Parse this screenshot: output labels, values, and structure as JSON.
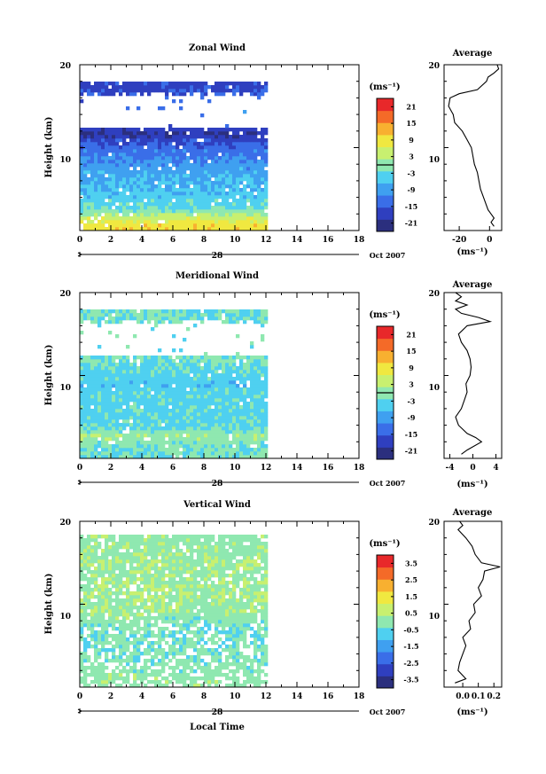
{
  "colormap": [
    "#2b2f7e",
    "#2f3fbf",
    "#3a6ee8",
    "#3fa0f0",
    "#4fd0f0",
    "#8fe8b0",
    "#c8f070",
    "#f0e840",
    "#f8b030",
    "#f46a28",
    "#e8282a"
  ],
  "chart_data": [
    {
      "type": "heatmap",
      "title": "Zonal Wind",
      "ylabel": "Height (km)",
      "x_ticks": [
        "0",
        "2",
        "4",
        "6",
        "8",
        "10",
        "12",
        "14",
        "16",
        "18"
      ],
      "xlim": [
        0,
        18
      ],
      "y_ticks": [
        "10",
        "20"
      ],
      "ylim": [
        0,
        20
      ],
      "date_day": "28",
      "date_label": "Oct 2007",
      "data_extent_hours": [
        0,
        12
      ],
      "colorbar": {
        "unit": "(ms⁻¹)",
        "ticks": [
          "21",
          "15",
          "9",
          "3",
          "-3",
          "-9",
          "-15",
          "-21"
        ],
        "range": [
          -24,
          24
        ],
        "zero_line": true
      },
      "field_profile_km": [
        {
          "h": 1,
          "v": 9
        },
        {
          "h": 2,
          "v": 3
        },
        {
          "h": 3,
          "v": -3
        },
        {
          "h": 4,
          "v": -4
        },
        {
          "h": 5,
          "v": -6
        },
        {
          "h": 6,
          "v": -7
        },
        {
          "h": 7,
          "v": -8
        },
        {
          "h": 8,
          "v": -9
        },
        {
          "h": 9,
          "v": -11
        },
        {
          "h": 10,
          "v": -13
        },
        {
          "h": 11,
          "v": -16
        },
        {
          "h": 12,
          "v": -20
        },
        {
          "h": 13,
          "v": -14
        },
        {
          "h": 14,
          "v": -10
        },
        {
          "h": 17.5,
          "v": -17
        }
      ],
      "average": {
        "title": "Average",
        "xlabel": "(ms⁻¹)",
        "x_ticks": [
          "-20",
          "0"
        ],
        "xlim": [
          -30,
          8
        ],
        "profile": [
          {
            "h": 0.5,
            "v": 3
          },
          {
            "h": 1,
            "v": 1
          },
          {
            "h": 1.5,
            "v": 3
          },
          {
            "h": 2,
            "v": 1
          },
          {
            "h": 2.5,
            "v": -1
          },
          {
            "h": 3,
            "v": -2
          },
          {
            "h": 4,
            "v": -4
          },
          {
            "h": 5,
            "v": -6
          },
          {
            "h": 6,
            "v": -7
          },
          {
            "h": 7,
            "v": -8
          },
          {
            "h": 8,
            "v": -10
          },
          {
            "h": 9,
            "v": -11
          },
          {
            "h": 10,
            "v": -12
          },
          {
            "h": 11,
            "v": -15
          },
          {
            "h": 12,
            "v": -18
          },
          {
            "h": 13,
            "v": -23
          },
          {
            "h": 14,
            "v": -24
          },
          {
            "h": 15,
            "v": -27
          },
          {
            "h": 16,
            "v": -26
          },
          {
            "h": 16.5,
            "v": -20
          },
          {
            "h": 17,
            "v": -8
          },
          {
            "h": 18,
            "v": -2
          },
          {
            "h": 18.5,
            "v": -1
          },
          {
            "h": 19,
            "v": 3
          },
          {
            "h": 19.5,
            "v": 6
          },
          {
            "h": 20,
            "v": 5
          }
        ]
      }
    },
    {
      "type": "heatmap",
      "title": "Meridional Wind",
      "ylabel": "Height (km)",
      "x_ticks": [
        "0",
        "2",
        "4",
        "6",
        "8",
        "10",
        "12",
        "14",
        "16",
        "18"
      ],
      "xlim": [
        0,
        18
      ],
      "y_ticks": [
        "10",
        "20"
      ],
      "ylim": [
        0,
        20
      ],
      "date_day": "28",
      "date_label": "Oct 2007",
      "data_extent_hours": [
        0,
        12
      ],
      "colorbar": {
        "unit": "(ms⁻¹)",
        "ticks": [
          "21",
          "15",
          "9",
          "3",
          "-3",
          "-9",
          "-15",
          "-21"
        ],
        "range": [
          -24,
          24
        ],
        "zero_line": true
      },
      "field_profile_km": [
        {
          "h": 1,
          "v": -2
        },
        {
          "h": 2,
          "v": -1
        },
        {
          "h": 3,
          "v": 1
        },
        {
          "h": 4,
          "v": -3
        },
        {
          "h": 5,
          "v": -4
        },
        {
          "h": 6,
          "v": -3
        },
        {
          "h": 7,
          "v": -4
        },
        {
          "h": 8,
          "v": -3
        },
        {
          "h": 9,
          "v": -5
        },
        {
          "h": 10,
          "v": -4
        },
        {
          "h": 11,
          "v": -3
        },
        {
          "h": 12,
          "v": -2
        },
        {
          "h": 13,
          "v": -1
        },
        {
          "h": 17.5,
          "v": -2
        }
      ],
      "average": {
        "title": "Average",
        "xlabel": "(ms⁻¹)",
        "x_ticks": [
          "-4",
          "0",
          "4"
        ],
        "xlim": [
          -5,
          5
        ],
        "profile": [
          {
            "h": 0.5,
            "v": -2
          },
          {
            "h": 1,
            "v": -1
          },
          {
            "h": 2,
            "v": 1.5
          },
          {
            "h": 2.5,
            "v": 0.5
          },
          {
            "h": 3,
            "v": -1
          },
          {
            "h": 4,
            "v": -2.5
          },
          {
            "h": 5,
            "v": -3
          },
          {
            "h": 6,
            "v": -2
          },
          {
            "h": 7,
            "v": -1.5
          },
          {
            "h": 8,
            "v": -1
          },
          {
            "h": 9,
            "v": -1.2
          },
          {
            "h": 10,
            "v": -0.5
          },
          {
            "h": 11,
            "v": -0.3
          },
          {
            "h": 12,
            "v": -0.5
          },
          {
            "h": 13,
            "v": -1
          },
          {
            "h": 14,
            "v": -2
          },
          {
            "h": 15,
            "v": -2.5
          },
          {
            "h": 16,
            "v": -1
          },
          {
            "h": 16.5,
            "v": 3
          },
          {
            "h": 17,
            "v": 1
          },
          {
            "h": 17.5,
            "v": -2
          },
          {
            "h": 18,
            "v": -3
          },
          {
            "h": 18.5,
            "v": -1
          },
          {
            "h": 19,
            "v": -3
          },
          {
            "h": 19.5,
            "v": -2
          },
          {
            "h": 20,
            "v": -3
          }
        ]
      }
    },
    {
      "type": "heatmap",
      "title": "Vertical Wind",
      "ylabel": "Height (km)",
      "xlabel": "Local Time",
      "x_ticks": [
        "0",
        "2",
        "4",
        "6",
        "8",
        "10",
        "12",
        "14",
        "16",
        "18"
      ],
      "xlim": [
        0,
        18
      ],
      "y_ticks": [
        "10",
        "20"
      ],
      "ylim": [
        0,
        20
      ],
      "date_day": "28",
      "date_label": "Oct 2007",
      "data_extent_hours": [
        0,
        12
      ],
      "colorbar": {
        "unit": "(ms⁻¹)",
        "ticks": [
          "3.5",
          "2.5",
          "1.5",
          "0.5",
          "-0.5",
          "-1.5",
          "-2.5",
          "-3.5"
        ],
        "range": [
          -4,
          4
        ],
        "zero_line": false
      },
      "field_profile_km": [
        {
          "h": 1,
          "v": 0.1
        },
        {
          "h": 3,
          "v": -0.1
        },
        {
          "h": 5,
          "v": -0.2
        },
        {
          "h": 7,
          "v": -0.3
        },
        {
          "h": 9,
          "v": 0.1
        },
        {
          "h": 11,
          "v": 0.3
        },
        {
          "h": 13,
          "v": 0.3
        },
        {
          "h": 15,
          "v": 0.2
        },
        {
          "h": 17,
          "v": 0.1
        },
        {
          "h": 19,
          "v": 0.1
        }
      ],
      "average": {
        "title": "Average",
        "xlabel": "(ms⁻¹)",
        "x_ticks": [
          "0.0",
          "0.1",
          "0.2"
        ],
        "xlim": [
          -0.12,
          0.25
        ],
        "profile": [
          {
            "h": 0.5,
            "v": -0.05
          },
          {
            "h": 1,
            "v": 0.02
          },
          {
            "h": 2,
            "v": -0.03
          },
          {
            "h": 3,
            "v": -0.02
          },
          {
            "h": 4,
            "v": 0.0
          },
          {
            "h": 5,
            "v": 0.02
          },
          {
            "h": 6,
            "v": 0.0
          },
          {
            "h": 7,
            "v": 0.05
          },
          {
            "h": 8,
            "v": 0.04
          },
          {
            "h": 9,
            "v": 0.08
          },
          {
            "h": 10,
            "v": 0.07
          },
          {
            "h": 11,
            "v": 0.12
          },
          {
            "h": 12,
            "v": 0.1
          },
          {
            "h": 13,
            "v": 0.13
          },
          {
            "h": 14,
            "v": 0.14
          },
          {
            "h": 14.5,
            "v": 0.24
          },
          {
            "h": 15,
            "v": 0.12
          },
          {
            "h": 16,
            "v": 0.08
          },
          {
            "h": 17,
            "v": 0.06
          },
          {
            "h": 18,
            "v": 0.02
          },
          {
            "h": 19,
            "v": -0.03
          },
          {
            "h": 19.5,
            "v": 0.0
          },
          {
            "h": 20,
            "v": -0.02
          }
        ]
      }
    }
  ]
}
